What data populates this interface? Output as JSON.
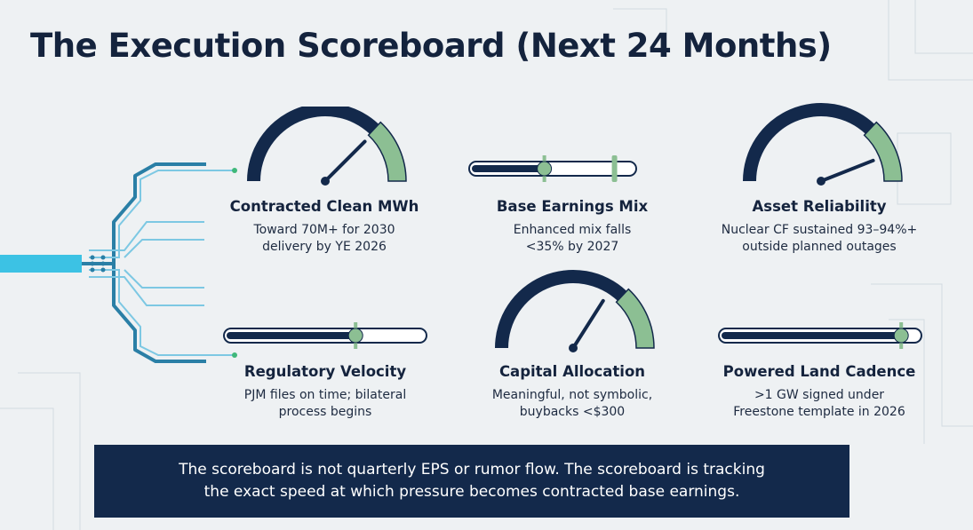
{
  "title": "The Execution Scoreboard (Next 24 Months)",
  "colors": {
    "navy": "#13294b",
    "green": "#8cbf93",
    "teal": "#2d93be",
    "cyan": "#3cc2e4",
    "background": "#eef1f3"
  },
  "metrics": [
    {
      "title": "Contracted Clean MWh",
      "line1": "Toward 70M+ for 2030",
      "line2": "delivery by YE 2026",
      "indicator": "gauge",
      "needle_level": 0.75
    },
    {
      "title": "Base Earnings Mix",
      "line1": "Enhanced mix falls",
      "line2": "<35% by 2027",
      "indicator": "slider",
      "fill_level": 0.45,
      "marker_level": 0.45,
      "target_level": 0.87
    },
    {
      "title": "Asset Reliability",
      "line1": "Nuclear CF sustained 93–94%+",
      "line2": "outside planned outages",
      "indicator": "gauge",
      "needle_level": 0.88
    },
    {
      "title": "Regulatory Velocity",
      "line1": "PJM files on time; bilateral",
      "line2": "process begins",
      "indicator": "slider",
      "fill_level": 0.65,
      "marker_level": 0.65,
      "target_level": 0.65
    },
    {
      "title": "Capital Allocation",
      "line1": "Meaningful, not symbolic,",
      "line2": "buybacks <$300",
      "indicator": "gauge",
      "needle_level": 0.68
    },
    {
      "title": "Powered Land Cadence",
      "line1": ">1 GW signed under",
      "line2": "Freestone template in 2026",
      "indicator": "slider",
      "fill_level": 0.9,
      "marker_level": 0.9,
      "target_level": 0.9
    }
  ],
  "banner": {
    "line1": "The scoreboard is not quarterly EPS or rumor flow. The scoreboard is tracking",
    "line2": "the exact speed at which pressure becomes contracted base earnings."
  }
}
